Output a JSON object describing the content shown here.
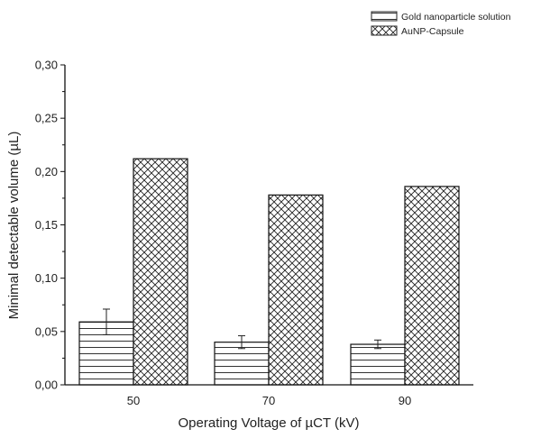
{
  "chart_data": {
    "type": "bar",
    "title": "",
    "xlabel": "Operating Voltage of µCT (kV)",
    "ylabel": "Minimal detectable volume  (µL)",
    "categories": [
      "50",
      "70",
      "90"
    ],
    "ylim": [
      0,
      0.3
    ],
    "yticks": [
      "0,00",
      "0,05",
      "0,10",
      "0,15",
      "0,20",
      "0,25",
      "0,30"
    ],
    "legend_position": "top-right",
    "grid": false,
    "series": [
      {
        "name": "Gold nanoparticle solution",
        "pattern": "horizontal-lines",
        "values": [
          0.059,
          0.04,
          0.038
        ],
        "errors": [
          0.012,
          0.006,
          0.004
        ]
      },
      {
        "name": "AuNP-Capsule",
        "pattern": "crosshatch",
        "values": [
          0.212,
          0.178,
          0.186
        ]
      }
    ]
  }
}
